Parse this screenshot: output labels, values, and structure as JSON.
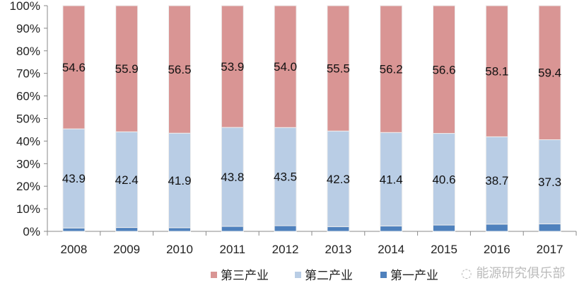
{
  "chart_data": {
    "type": "bar",
    "stacked": true,
    "title": "",
    "xlabel": "",
    "ylabel": "",
    "ylim": [
      0,
      100
    ],
    "yticks": [
      "0%",
      "10%",
      "20%",
      "30%",
      "40%",
      "50%",
      "60%",
      "70%",
      "80%",
      "90%",
      "100%"
    ],
    "categories": [
      "2008",
      "2009",
      "2010",
      "2011",
      "2012",
      "2013",
      "2014",
      "2015",
      "2016",
      "2017"
    ],
    "series": [
      {
        "name": "第一产业",
        "color": "#4F81BD",
        "values": [
          1.5,
          1.7,
          1.6,
          2.2,
          2.5,
          2.1,
          2.4,
          2.8,
          3.2,
          3.3
        ]
      },
      {
        "name": "第二产业",
        "color": "#B9CDE5",
        "values": [
          43.9,
          42.4,
          41.9,
          43.8,
          43.5,
          42.3,
          41.4,
          40.6,
          38.7,
          37.3
        ]
      },
      {
        "name": "第三产业",
        "color": "#D99594",
        "values": [
          54.6,
          55.9,
          56.5,
          53.9,
          54.0,
          55.5,
          56.2,
          56.6,
          58.1,
          59.4
        ]
      }
    ],
    "legend_order": [
      "第三产业",
      "第二产业",
      "第一产业"
    ],
    "legend_position": "bottom"
  },
  "watermark": "能源研究俱乐部"
}
